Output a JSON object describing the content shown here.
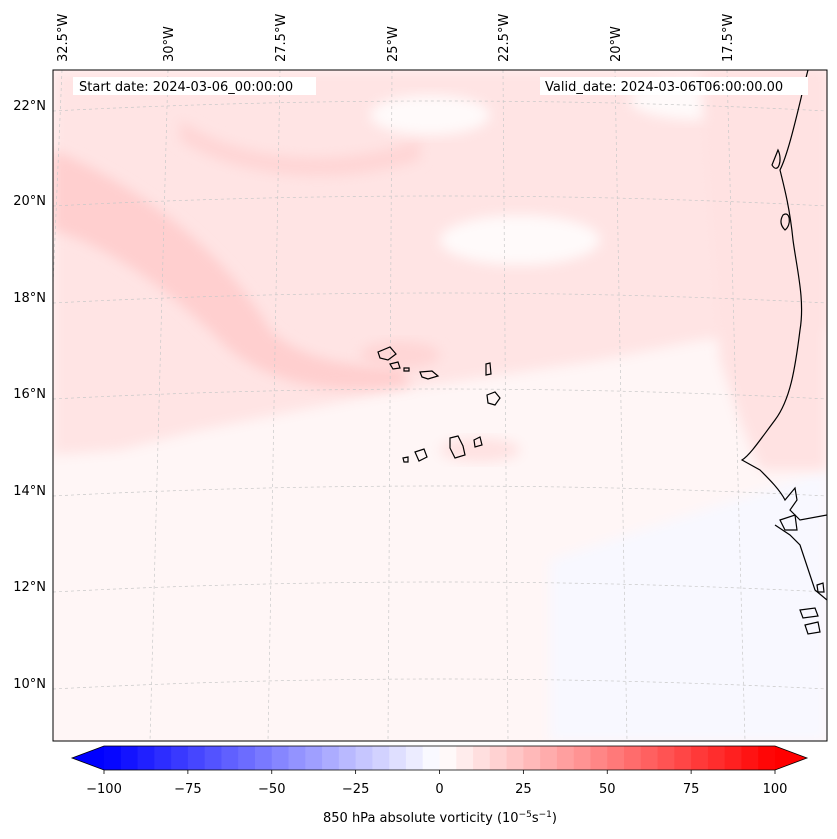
{
  "annotations": {
    "start_date": "Start date: 2024-03-06_00:00:00",
    "valid_date": "Valid_date: 2024-03-06T06:00:00.00"
  },
  "longitude_labels": [
    "32.5°W",
    "30°W",
    "27.5°W",
    "25°W",
    "22.5°W",
    "20°W",
    "17.5°W"
  ],
  "latitude_labels": [
    "22°N",
    "20°N",
    "18°N",
    "16°N",
    "14°N",
    "12°N",
    "10°N"
  ],
  "colorbar": {
    "label_prefix": "850 hPa absolute vorticity (10",
    "label_exp1": "−5",
    "label_mid": "s",
    "label_exp2": "−1",
    "label_suffix": ")",
    "tick_values": [
      -100,
      -75,
      -50,
      -25,
      0,
      25,
      50,
      75,
      100
    ],
    "tick_labels": [
      "−100",
      "−75",
      "−50",
      "−25",
      "0",
      "25",
      "50",
      "75",
      "100"
    ],
    "range": [
      -100,
      100
    ],
    "step": 5,
    "extend": "both",
    "colormap": "bwr",
    "color_min": "#0000ff",
    "color_mid": "#ffffff",
    "color_max": "#ff0000"
  },
  "map": {
    "field": "850 hPa absolute vorticity",
    "region": "Cape Verde / West Africa coast",
    "background_color": "#fff6f6",
    "gridlines": "dashed light gray",
    "coastline_color": "#000000"
  }
}
